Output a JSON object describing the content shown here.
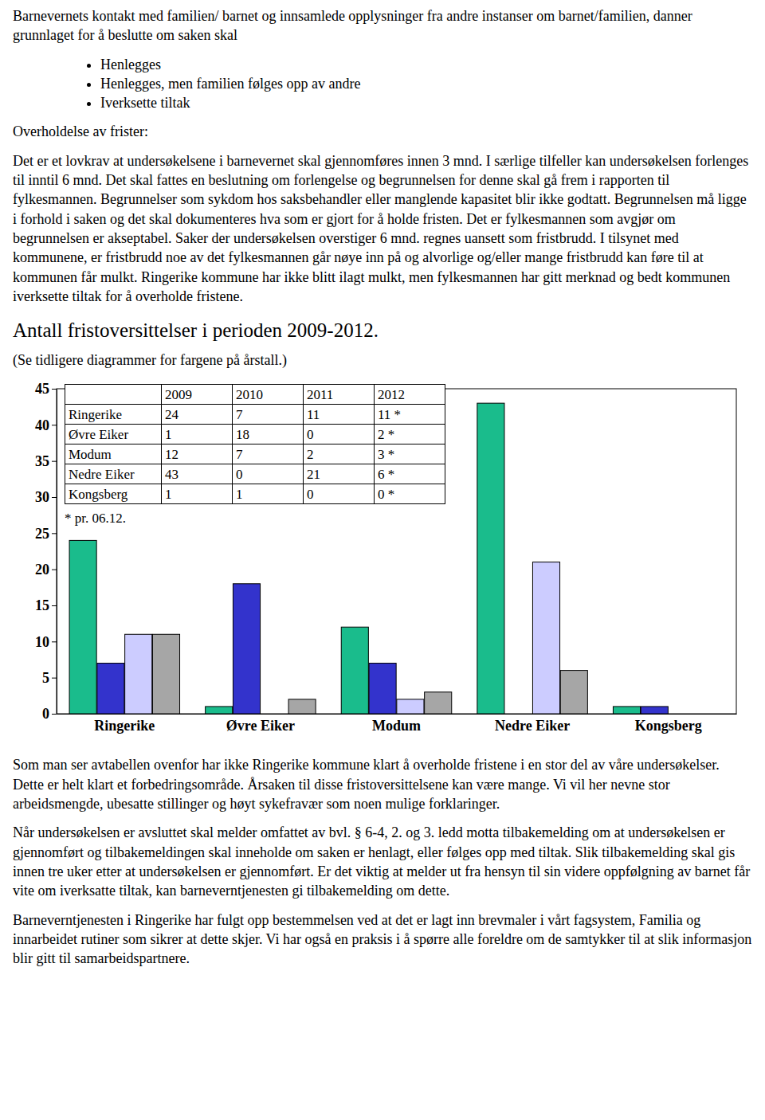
{
  "document": {
    "intro": "Barnevernets kontakt med familien/ barnet og innsamlede opplysninger fra andre instanser om barnet/familien, danner grunnlaget for å beslutte om saken skal",
    "bullets": [
      "Henlegges",
      "Henlegges, men familien følges opp av andre",
      "Iverksette tiltak"
    ],
    "section_label": "Overholdelse av frister:",
    "deadline_paragraph": "Det er et lovkrav at undersøkelsene i barnevernet skal gjennomføres innen 3 mnd. I særlige tilfeller kan undersøkelsen forlenges til inntil 6 mnd. Det skal fattes en beslutning om forlengelse og begrunnelsen for denne skal gå frem i rapporten til fylkesmannen. Begrunnelser som sykdom hos saksbehandler eller manglende kapasitet blir ikke godtatt. Begrunnelsen må ligge i forhold i saken og det skal dokumenteres hva som er gjort for å holde fristen. Det er fylkesmannen som avgjør om begrunnelsen er akseptabel. Saker der undersøkelsen overstiger 6 mnd. regnes uansett som fristbrudd. I tilsynet med kommunene, er fristbrudd noe av det fylkesmannen går nøye inn på og alvorlige og/eller mange fristbrudd kan føre til at kommunen får mulkt. Ringerike kommune har ikke blitt ilagt mulkt, men fylkesmannen har gitt merknad og bedt kommunen iverksette tiltak for å overholde fristene.",
    "heading": "Antall fristoversittelser i perioden 2009-2012.",
    "color_note": "(Se tidligere diagrammer for fargene på årstall.)",
    "table": {
      "rows": [
        [
          "Ringerike",
          "24",
          "7",
          "11",
          "11 *"
        ],
        [
          "Øvre Eiker",
          "1",
          "18",
          "0",
          "2 *"
        ],
        [
          "Modum",
          "12",
          "7",
          "2",
          "3 *"
        ],
        [
          "Nedre Eiker",
          "43",
          "0",
          "21",
          "6 *"
        ],
        [
          "Kongsberg",
          "1",
          "1",
          "0",
          "0 *"
        ]
      ],
      "footnote": "* pr. 06.12."
    },
    "paragraphs": [
      "Som man ser avtabellen ovenfor har ikke Ringerike kommune klart å overholde fristene i en stor del av våre undersøkelser. Dette er helt klart et forbedringsområde. Årsaken til disse fristoversittelsene kan være mange. Vi vil her nevne stor arbeidsmengde, ubesatte stillinger og høyt sykefravær som noen mulige forklaringer.",
      "Når undersøkelsen er avsluttet skal melder omfattet av bvl. § 6-4, 2. og 3. ledd motta tilbakemelding om at undersøkelsen er gjennomført og tilbakemeldingen skal inneholde om saken er henlagt, eller følges opp med tiltak. Slik tilbakemelding skal gis innen tre uker etter at undersøkelsen er gjennomført. Er det viktig at melder ut fra hensyn til sin videre oppfølgning av barnet får vite om iverksatte tiltak, kan barneverntjenesten gi tilbakemelding om dette.",
      "Barneverntjenesten i Ringerike har fulgt opp bestemmelsen ved at det er lagt inn brevmaler i vårt fagsystem, Familia og innarbeidet rutiner som sikrer at dette skjer. Vi har også en praksis i å spørre alle foreldre om de samtykker til at slik informasjon blir gitt til samarbeidspartnere."
    ]
  },
  "chart_data": {
    "type": "bar",
    "categories": [
      "Ringerike",
      "Øvre Eiker",
      "Modum",
      "Nedre Eiker",
      "Kongsberg"
    ],
    "series": [
      {
        "name": "2009",
        "color": "#1abc8c",
        "values": [
          24,
          1,
          12,
          43,
          1
        ]
      },
      {
        "name": "2010",
        "color": "#3333cc",
        "values": [
          7,
          18,
          7,
          0,
          1
        ]
      },
      {
        "name": "2011",
        "color": "#ccccff",
        "values": [
          11,
          0,
          2,
          21,
          0
        ]
      },
      {
        "name": "2012",
        "color": "#a6a6a6",
        "values": [
          11,
          2,
          3,
          6,
          0
        ]
      }
    ],
    "ylim": [
      0,
      45
    ],
    "yticks": [
      0,
      5,
      10,
      15,
      20,
      25,
      30,
      35,
      40,
      45
    ],
    "grid": false
  }
}
